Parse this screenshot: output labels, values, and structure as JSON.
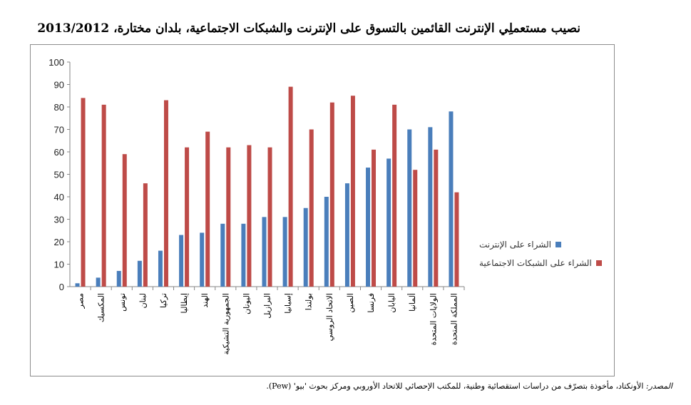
{
  "title": "نصيب مستعملِي الإنترنت القائمين بالتسوق على الإنترنت والشبكات الاجتماعية، بلدان مختارة، 2013/2012",
  "source": {
    "label": "المصدر:",
    "text": "الأونكتاد، مأخوذة بتصرّف من دراسات استقصائية وطنية، للمكتب الإحصائي للاتحاد الأوروبي ومركز بحوث 'بيو' (Pew)."
  },
  "colors": {
    "series_online": "#4a7ebb",
    "series_social": "#be4b48"
  },
  "chart_data": {
    "type": "bar",
    "title": "",
    "xlabel": "",
    "ylabel": "",
    "ylim": [
      0,
      100
    ],
    "yticks": [
      0,
      10,
      20,
      30,
      40,
      50,
      60,
      70,
      80,
      90,
      100
    ],
    "grid": false,
    "legend_position": "right",
    "categories": [
      "مصر",
      "المكسيك",
      "تونس",
      "لبنان",
      "تركيا",
      "إيطاليا",
      "الهند",
      "الجمهورية التشيكية",
      "اليونان",
      "البرازيل",
      "إسبانيا",
      "بولندا",
      "الاتحاد الروسي",
      "الصين",
      "فرنسا",
      "اليابان",
      "ألمانيا",
      "الولايات المتحدة",
      "المملكة المتحدة"
    ],
    "series": [
      {
        "name": "الشراء على الإنترنت",
        "values": [
          1.5,
          4,
          7,
          11.5,
          16,
          23,
          24,
          28,
          28,
          31,
          31,
          35,
          40,
          46,
          53,
          57,
          70,
          71,
          78
        ]
      },
      {
        "name": "الشراء على الشبكات الاجتماعية",
        "values": [
          84,
          81,
          59,
          46,
          83,
          62,
          69,
          62,
          63,
          62,
          89,
          70,
          82,
          85,
          61,
          81,
          52,
          61,
          42
        ]
      }
    ]
  }
}
